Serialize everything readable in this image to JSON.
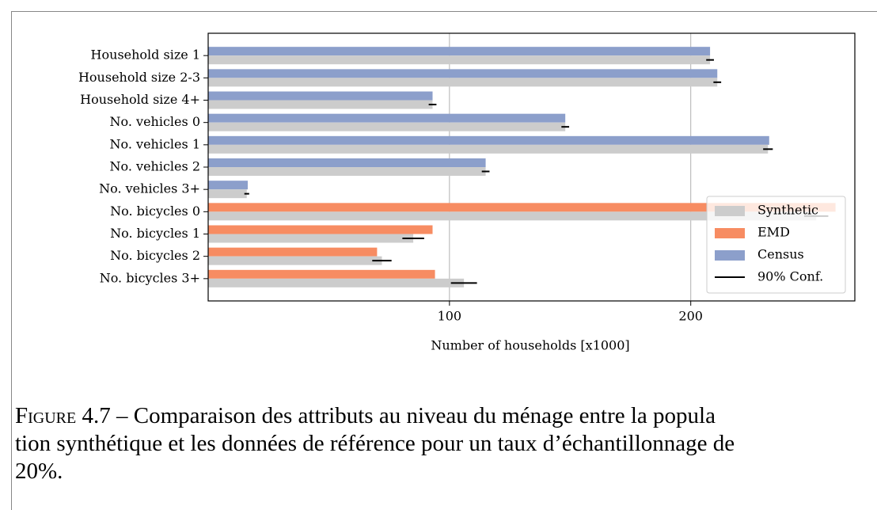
{
  "chart_data": {
    "type": "barh",
    "categories": [
      "Household size 1",
      "Household size 2-3",
      "Household size 4+",
      "No. vehicles 0",
      "No. vehicles 1",
      "No. vehicles 2",
      "No. vehicles 3+",
      "No. bicycles 0",
      "No. bicycles 1",
      "No. bicycles 2",
      "No. bicycles 3+"
    ],
    "series": [
      {
        "name": "Synthetic",
        "color": "#cccccc",
        "values": [
          208,
          211,
          93,
          148,
          232,
          115,
          16,
          252,
          85,
          72,
          106
        ],
        "errors": [
          1.6,
          1.6,
          1.6,
          1.6,
          2,
          1.6,
          1,
          5,
          4.5,
          4,
          5.4
        ]
      },
      {
        "name": "EMD",
        "color": "#f78c62",
        "values": [
          null,
          null,
          null,
          null,
          null,
          null,
          null,
          260,
          93,
          70,
          94
        ]
      },
      {
        "name": "Census",
        "color": "#8c9fcb",
        "values": [
          208,
          211,
          93,
          148,
          232.5,
          115,
          16.4,
          null,
          null,
          null,
          null
        ]
      }
    ],
    "error_label": "90% Conf.",
    "xlabel": "Number of households [x1000]",
    "xlim": [
      0,
      268
    ],
    "xticks": [
      100,
      200
    ],
    "grid": true,
    "legend": "lower right"
  },
  "caption": {
    "label": "Figure 4.7",
    "lines": [
      "– Comparaison des attributs au niveau du ménage entre la popula",
      "tion synthétique et les données de référence pour un taux d’échantillonnage de",
      "20%."
    ]
  }
}
